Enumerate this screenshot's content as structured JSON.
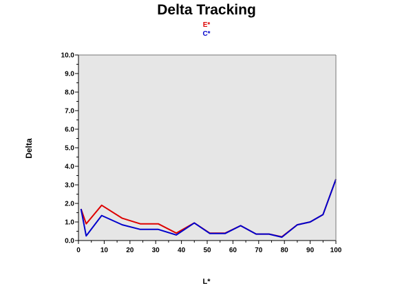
{
  "chart_data": {
    "type": "line",
    "title": "Delta Tracking",
    "xlabel": "L*",
    "ylabel": "Delta",
    "xlim": [
      0,
      100
    ],
    "ylim": [
      0,
      10
    ],
    "xticks": [
      0,
      10,
      20,
      30,
      40,
      50,
      60,
      70,
      80,
      90,
      100
    ],
    "yticks": [
      0.0,
      1.0,
      2.0,
      3.0,
      4.0,
      5.0,
      6.0,
      7.0,
      8.0,
      9.0,
      10.0
    ],
    "xtick_labels": [
      "0",
      "10",
      "20",
      "30",
      "40",
      "50",
      "60",
      "70",
      "80",
      "90",
      "100"
    ],
    "ytick_labels": [
      "0.0",
      "1.0",
      "2.0",
      "3.0",
      "4.0",
      "5.0",
      "6.0",
      "7.0",
      "8.0",
      "9.0",
      "10.0"
    ],
    "grid": false,
    "legend_position": "top-center",
    "background": "#e6e6e6",
    "series": [
      {
        "name": "E*",
        "color": "#dd0000",
        "x": [
          1,
          3,
          9,
          17,
          24,
          31,
          38,
          45,
          51,
          57,
          63,
          69,
          74,
          79,
          85,
          90,
          95,
          100
        ],
        "y": [
          1.7,
          0.9,
          1.9,
          1.2,
          0.9,
          0.9,
          0.4,
          0.95,
          0.4,
          0.4,
          0.8,
          0.35,
          0.35,
          0.2,
          0.85,
          1.0,
          1.4,
          3.3
        ]
      },
      {
        "name": "C*",
        "color": "#0000cc",
        "x": [
          1,
          3,
          9,
          17,
          24,
          31,
          38,
          45,
          51,
          57,
          63,
          69,
          74,
          79,
          85,
          90,
          95,
          100
        ],
        "y": [
          1.7,
          0.25,
          1.35,
          0.85,
          0.6,
          0.6,
          0.3,
          0.95,
          0.38,
          0.38,
          0.8,
          0.35,
          0.35,
          0.18,
          0.85,
          1.0,
          1.4,
          3.3
        ]
      }
    ]
  }
}
